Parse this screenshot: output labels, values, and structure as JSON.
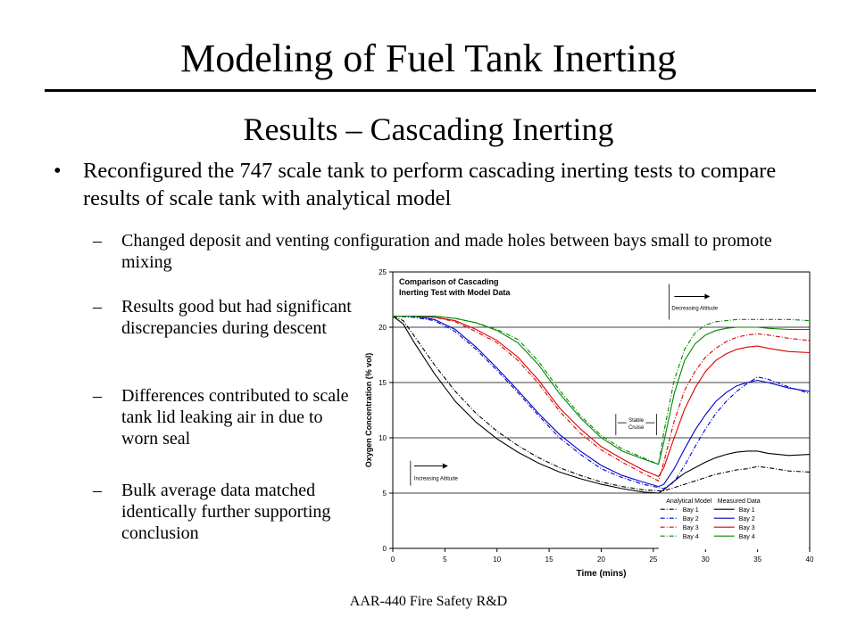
{
  "slide": {
    "title": "Modeling of Fuel Tank Inerting",
    "subtitle": "Results – Cascading Inerting",
    "bullet_marker": "•",
    "dash_marker": "–",
    "bullet": "Reconfigured the 747 scale tank to perform cascading inerting tests to compare results of scale tank with analytical model",
    "subpoints": [
      "Changed deposit and venting configuration and made holes between bays small to promote mixing",
      "Results good but had significant discrepancies during descent",
      "Differences contributed to scale tank lid leaking air in due to worn seal",
      "Bulk average data matched identically further supporting conclusion"
    ],
    "footer": "AAR-440 Fire Safety R&D"
  },
  "chart_data": {
    "type": "line",
    "title": "Comparison of Cascading Inerting Test with Model Data",
    "xlabel": "Time (mins)",
    "ylabel": "Oxygen Concentration (% vol)",
    "xlim": [
      0,
      40
    ],
    "ylim": [
      0,
      25
    ],
    "xticks": [
      0,
      5,
      10,
      15,
      20,
      25,
      30,
      35,
      40
    ],
    "yticks": [
      0,
      5,
      10,
      15,
      20,
      25
    ],
    "grid": "horizontal",
    "legend_position": "bottom-right",
    "legend_headers": [
      "Analytical Model",
      "Measured Data"
    ],
    "annotations": [
      {
        "text": "Decreasing Altitude",
        "x": 26.5,
        "y": 22.3
      },
      {
        "text": "Stable Cruise",
        "x": 21.4,
        "y": 11.2
      },
      {
        "text": "Increasing Altitude",
        "x": 1.7,
        "y": 6.8
      }
    ],
    "colors": {
      "Bay 1": "#000000",
      "Bay 2": "#0000cc",
      "Bay 3": "#dd0000",
      "Bay 4": "#008800"
    },
    "series": [
      {
        "name": "Bay 1",
        "group": "Analytical Model",
        "dash": true,
        "x": [
          0,
          1,
          2,
          4,
          6,
          8,
          10,
          12,
          14,
          16,
          18,
          20,
          22,
          24,
          25.5,
          26,
          27,
          28,
          29,
          30,
          31,
          32,
          33,
          34,
          35,
          36,
          38,
          40
        ],
        "y": [
          21,
          20.6,
          19.3,
          16.6,
          14.2,
          12.2,
          10.6,
          9.3,
          8.2,
          7.3,
          6.6,
          6.0,
          5.6,
          5.3,
          5.2,
          5.2,
          5.5,
          5.8,
          6.1,
          6.4,
          6.7,
          6.9,
          7.1,
          7.2,
          7.4,
          7.3,
          7.0,
          6.9
        ]
      },
      {
        "name": "Bay 1",
        "group": "Measured Data",
        "dash": false,
        "x": [
          0,
          1,
          2,
          4,
          6,
          8,
          10,
          12,
          14,
          16,
          18,
          20,
          22,
          24,
          25.5,
          26,
          27,
          28,
          29,
          30,
          31,
          32,
          33,
          34,
          35,
          36,
          38,
          40
        ],
        "y": [
          21,
          20.3,
          18.7,
          15.8,
          13.3,
          11.4,
          9.9,
          8.7,
          7.7,
          6.9,
          6.3,
          5.8,
          5.4,
          5.1,
          5.0,
          5.3,
          6.1,
          6.8,
          7.3,
          7.8,
          8.2,
          8.5,
          8.7,
          8.8,
          8.8,
          8.6,
          8.4,
          8.5
        ]
      },
      {
        "name": "Bay 2",
        "group": "Analytical Model",
        "dash": true,
        "x": [
          0,
          2,
          4,
          6,
          8,
          10,
          12,
          14,
          16,
          18,
          20,
          22,
          24,
          25.5,
          26,
          27,
          28,
          29,
          30,
          31,
          32,
          33,
          34,
          35,
          36,
          38,
          40
        ],
        "y": [
          21,
          20.9,
          20.6,
          19.6,
          18.0,
          16.1,
          14.1,
          12.0,
          10.0,
          8.5,
          7.2,
          6.4,
          5.8,
          5.5,
          5.4,
          6.0,
          7.5,
          9.2,
          10.8,
          12.2,
          13.3,
          14.2,
          14.9,
          15.5,
          15.3,
          14.6,
          14.0
        ]
      },
      {
        "name": "Bay 2",
        "group": "Measured Data",
        "dash": false,
        "x": [
          0,
          2,
          4,
          6,
          8,
          10,
          12,
          14,
          16,
          18,
          20,
          22,
          24,
          25.5,
          26,
          27,
          28,
          29,
          30,
          31,
          32,
          33,
          34,
          35,
          36,
          38,
          40
        ],
        "y": [
          21,
          21.0,
          20.7,
          19.8,
          18.2,
          16.3,
          14.3,
          12.2,
          10.3,
          8.8,
          7.5,
          6.6,
          6.0,
          5.6,
          5.8,
          7.2,
          9.0,
          10.7,
          12.1,
          13.3,
          14.1,
          14.7,
          15.0,
          15.2,
          15.0,
          14.5,
          14.2
        ]
      },
      {
        "name": "Bay 3",
        "group": "Analytical Model",
        "dash": true,
        "x": [
          0,
          2,
          4,
          6,
          8,
          10,
          12,
          14,
          16,
          18,
          20,
          22,
          24,
          25.5,
          26,
          27,
          28,
          29,
          30,
          31,
          32,
          33,
          34,
          35,
          36,
          38,
          40
        ],
        "y": [
          21,
          21.0,
          20.9,
          20.5,
          19.6,
          18.6,
          17.0,
          14.9,
          12.4,
          10.4,
          8.9,
          7.8,
          6.8,
          6.1,
          7.8,
          11.5,
          14.3,
          16.0,
          17.3,
          18.1,
          18.7,
          19.1,
          19.3,
          19.4,
          19.3,
          19.0,
          18.8
        ]
      },
      {
        "name": "Bay 3",
        "group": "Measured Data",
        "dash": false,
        "x": [
          0,
          2,
          4,
          6,
          8,
          10,
          12,
          14,
          16,
          18,
          20,
          22,
          24,
          25.5,
          26,
          27,
          28,
          29,
          30,
          31,
          32,
          33,
          34,
          35,
          36,
          38,
          40
        ],
        "y": [
          21,
          21.0,
          20.9,
          20.6,
          19.8,
          18.8,
          17.3,
          15.2,
          12.7,
          10.8,
          9.2,
          8.1,
          7.1,
          6.5,
          7.3,
          10.0,
          12.6,
          14.5,
          16.0,
          17.0,
          17.6,
          18.0,
          18.2,
          18.3,
          18.1,
          17.8,
          17.7
        ]
      },
      {
        "name": "Bay 4",
        "group": "Analytical Model",
        "dash": true,
        "x": [
          0,
          2,
          4,
          6,
          8,
          10,
          12,
          14,
          16,
          18,
          20,
          22,
          24,
          25.5,
          26,
          27,
          28,
          29,
          30,
          31,
          32,
          33,
          34,
          35,
          36,
          38,
          40
        ],
        "y": [
          21,
          21.0,
          21.0,
          20.8,
          20.4,
          19.8,
          18.9,
          16.9,
          14.3,
          12.0,
          10.2,
          9.0,
          8.2,
          7.6,
          10.5,
          15.2,
          18.0,
          19.5,
          20.2,
          20.5,
          20.6,
          20.7,
          20.7,
          20.7,
          20.7,
          20.7,
          20.6
        ]
      },
      {
        "name": "Bay 4",
        "group": "Measured Data",
        "dash": false,
        "x": [
          0,
          2,
          4,
          6,
          8,
          10,
          12,
          14,
          16,
          18,
          20,
          22,
          24,
          25.5,
          26,
          27,
          28,
          29,
          30,
          31,
          32,
          33,
          34,
          35,
          36,
          38,
          40
        ],
        "y": [
          21,
          21.0,
          21.0,
          20.8,
          20.4,
          19.7,
          18.6,
          16.6,
          14.0,
          11.8,
          10.0,
          8.8,
          8.1,
          7.6,
          9.6,
          14.0,
          17.0,
          18.5,
          19.3,
          19.7,
          19.9,
          20.0,
          20.0,
          20.0,
          19.9,
          19.8,
          19.8
        ]
      }
    ]
  }
}
